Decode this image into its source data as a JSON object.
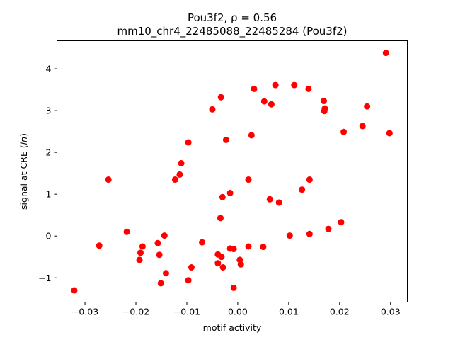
{
  "chart_data": {
    "type": "scatter",
    "title": "Pou3f2, ρ = 0.56",
    "subtitle": "mm10_chr4_22485088_22485284 (Pou3f2)",
    "xlabel": "motif activity",
    "ylabel_prefix": "signal at CRE (",
    "ylabel_italic": "ln",
    "ylabel_suffix": ")",
    "xlim": [
      -0.0355,
      0.0333
    ],
    "ylim": [
      -1.58,
      4.67
    ],
    "grid": false,
    "marker_color": "#ff0000",
    "xticks": [
      {
        "value": -0.03,
        "label": "−0.03"
      },
      {
        "value": -0.02,
        "label": "−0.02"
      },
      {
        "value": -0.01,
        "label": "−0.01"
      },
      {
        "value": 0.0,
        "label": "0.00"
      },
      {
        "value": 0.01,
        "label": "0.01"
      },
      {
        "value": 0.02,
        "label": "0.02"
      },
      {
        "value": 0.03,
        "label": "0.03"
      }
    ],
    "yticks": [
      {
        "value": -1,
        "label": "−1"
      },
      {
        "value": 0,
        "label": "0"
      },
      {
        "value": 1,
        "label": "1"
      },
      {
        "value": 2,
        "label": "2"
      },
      {
        "value": 3,
        "label": "3"
      },
      {
        "value": 4,
        "label": "4"
      }
    ],
    "points": [
      {
        "x": -0.0321,
        "y": -1.3
      },
      {
        "x": -0.0272,
        "y": -0.23
      },
      {
        "x": -0.0254,
        "y": 1.35
      },
      {
        "x": -0.0218,
        "y": 0.1
      },
      {
        "x": -0.0193,
        "y": -0.57
      },
      {
        "x": -0.0191,
        "y": -0.4
      },
      {
        "x": -0.0187,
        "y": -0.25
      },
      {
        "x": -0.0157,
        "y": -0.17
      },
      {
        "x": -0.0154,
        "y": -0.45
      },
      {
        "x": -0.0151,
        "y": -1.13
      },
      {
        "x": -0.0144,
        "y": 0.01
      },
      {
        "x": -0.0141,
        "y": -0.89
      },
      {
        "x": -0.0123,
        "y": 1.35
      },
      {
        "x": -0.0114,
        "y": 1.47
      },
      {
        "x": -0.0111,
        "y": 1.74
      },
      {
        "x": -0.0097,
        "y": 2.24
      },
      {
        "x": -0.0097,
        "y": -1.06
      },
      {
        "x": -0.0091,
        "y": -0.75
      },
      {
        "x": -0.007,
        "y": -0.15
      },
      {
        "x": -0.005,
        "y": 3.03
      },
      {
        "x": -0.0039,
        "y": -0.44
      },
      {
        "x": -0.0039,
        "y": -0.65
      },
      {
        "x": -0.0034,
        "y": 0.43
      },
      {
        "x": -0.0033,
        "y": 3.32
      },
      {
        "x": -0.0032,
        "y": -0.5
      },
      {
        "x": -0.003,
        "y": 0.93
      },
      {
        "x": -0.0029,
        "y": -0.75
      },
      {
        "x": -0.0023,
        "y": 2.3
      },
      {
        "x": -0.0015,
        "y": 1.03
      },
      {
        "x": -0.0015,
        "y": -0.3
      },
      {
        "x": -0.0008,
        "y": -0.31
      },
      {
        "x": -0.0008,
        "y": -1.24
      },
      {
        "x": 0.0004,
        "y": -0.57
      },
      {
        "x": 0.0006,
        "y": -0.68
      },
      {
        "x": 0.0021,
        "y": 1.35
      },
      {
        "x": 0.0021,
        "y": -0.25
      },
      {
        "x": 0.0027,
        "y": 2.41
      },
      {
        "x": 0.0032,
        "y": 3.52
      },
      {
        "x": 0.005,
        "y": -0.26
      },
      {
        "x": 0.0052,
        "y": 3.22
      },
      {
        "x": 0.0063,
        "y": 0.88
      },
      {
        "x": 0.0066,
        "y": 3.15
      },
      {
        "x": 0.0074,
        "y": 3.61
      },
      {
        "x": 0.0081,
        "y": 0.8
      },
      {
        "x": 0.0102,
        "y": 0.01
      },
      {
        "x": 0.0111,
        "y": 3.61
      },
      {
        "x": 0.0126,
        "y": 1.11
      },
      {
        "x": 0.0139,
        "y": 3.52
      },
      {
        "x": 0.0141,
        "y": 1.35
      },
      {
        "x": 0.0141,
        "y": 0.05
      },
      {
        "x": 0.0169,
        "y": 3.23
      },
      {
        "x": 0.017,
        "y": 2.99
      },
      {
        "x": 0.0171,
        "y": 3.05
      },
      {
        "x": 0.0178,
        "y": 0.17
      },
      {
        "x": 0.0203,
        "y": 0.33
      },
      {
        "x": 0.0208,
        "y": 2.49
      },
      {
        "x": 0.0245,
        "y": 2.63
      },
      {
        "x": 0.0254,
        "y": 3.1
      },
      {
        "x": 0.0291,
        "y": 4.38
      },
      {
        "x": 0.0298,
        "y": 2.46
      }
    ]
  }
}
